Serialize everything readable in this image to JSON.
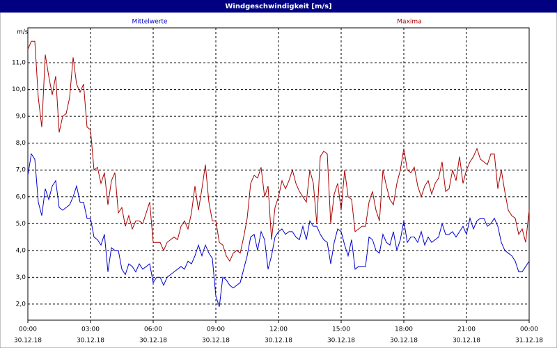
{
  "chart_data": {
    "type": "line",
    "title": "Windgeschwindigkeit [m/s]",
    "y_label": "m/s",
    "x": [
      0,
      10,
      20,
      30,
      40,
      50,
      60,
      70,
      80,
      90,
      100,
      110,
      120,
      130,
      140,
      150,
      160,
      170,
      180,
      190,
      200,
      210,
      220,
      230,
      240,
      250,
      260,
      270,
      280,
      290,
      300,
      310,
      320,
      330,
      340,
      350,
      360,
      370,
      380,
      390,
      400,
      410,
      420,
      430,
      440,
      450,
      460,
      470,
      480,
      490,
      500,
      510,
      520,
      530,
      540,
      550,
      560,
      570,
      580,
      590,
      600,
      610,
      620,
      630,
      640,
      650,
      660,
      670,
      680,
      690,
      700,
      710,
      720,
      730,
      740,
      750,
      760,
      770,
      780,
      790,
      800,
      810,
      820,
      830,
      840,
      850,
      860,
      870,
      880,
      890,
      900,
      910,
      920,
      930,
      940,
      950,
      960,
      970,
      980,
      990,
      1000,
      1010,
      1020,
      1030,
      1040,
      1050,
      1060,
      1070,
      1080,
      1090,
      1100,
      1110,
      1120,
      1130,
      1140,
      1150,
      1160,
      1170,
      1180,
      1190,
      1200,
      1210,
      1220,
      1230,
      1240,
      1250,
      1260,
      1270,
      1280,
      1290,
      1300,
      1310,
      1320,
      1330,
      1340,
      1350,
      1360,
      1370,
      1380,
      1390,
      1400,
      1410,
      1420,
      1430,
      1440
    ],
    "series": [
      {
        "name": "Mittelwerte",
        "color": "#0000cc",
        "values": [
          6.8,
          7.6,
          7.4,
          5.8,
          5.3,
          6.3,
          5.9,
          6.4,
          6.6,
          5.6,
          5.5,
          5.6,
          5.7,
          6.0,
          6.4,
          5.8,
          5.8,
          5.2,
          5.2,
          4.5,
          4.4,
          4.2,
          4.6,
          3.2,
          4.1,
          4.0,
          4.0,
          3.3,
          3.1,
          3.5,
          3.4,
          3.2,
          3.5,
          3.3,
          3.4,
          3.5,
          2.8,
          3.0,
          3.0,
          2.7,
          3.0,
          3.1,
          3.2,
          3.3,
          3.4,
          3.3,
          3.6,
          3.5,
          3.8,
          4.2,
          3.8,
          4.2,
          3.9,
          3.7,
          2.3,
          1.9,
          3.0,
          2.9,
          2.7,
          2.6,
          2.7,
          2.8,
          3.3,
          3.8,
          4.5,
          4.6,
          4.0,
          4.7,
          4.4,
          3.3,
          3.8,
          4.5,
          4.7,
          4.8,
          4.6,
          4.7,
          4.7,
          4.5,
          4.4,
          4.9,
          4.4,
          5.1,
          4.9,
          4.9,
          4.6,
          4.4,
          4.3,
          3.5,
          4.3,
          4.8,
          4.7,
          4.2,
          3.8,
          4.4,
          3.3,
          3.4,
          3.4,
          3.4,
          4.5,
          4.4,
          4.0,
          3.9,
          4.6,
          4.3,
          4.2,
          4.7,
          4.0,
          4.4,
          5.1,
          4.3,
          4.5,
          4.5,
          4.3,
          4.7,
          4.2,
          4.5,
          4.3,
          4.4,
          4.5,
          5.0,
          4.6,
          4.6,
          4.7,
          4.5,
          4.7,
          4.9,
          4.6,
          5.2,
          4.8,
          5.1,
          5.2,
          5.2,
          4.9,
          5.0,
          5.2,
          4.9,
          4.3,
          4.0,
          3.9,
          3.8,
          3.6,
          3.2,
          3.2,
          3.4,
          3.6
        ]
      },
      {
        "name": "Maxima",
        "color": "#aa0000",
        "values": [
          11.5,
          11.8,
          11.8,
          9.7,
          8.6,
          11.3,
          10.5,
          9.8,
          10.5,
          8.4,
          9.0,
          9.1,
          9.7,
          11.2,
          10.2,
          9.9,
          10.2,
          8.6,
          8.5,
          7.0,
          7.1,
          6.5,
          6.9,
          5.7,
          6.6,
          6.9,
          5.4,
          5.6,
          4.9,
          5.3,
          4.8,
          5.1,
          5.1,
          5.0,
          5.4,
          5.8,
          4.3,
          4.3,
          4.3,
          4.0,
          4.3,
          4.4,
          4.5,
          4.4,
          4.9,
          5.1,
          4.8,
          5.4,
          6.4,
          5.5,
          6.3,
          7.2,
          5.8,
          5.1,
          5.1,
          4.3,
          4.2,
          3.8,
          3.6,
          3.9,
          4.0,
          3.9,
          4.5,
          5.2,
          6.5,
          6.8,
          6.7,
          7.1,
          6.0,
          6.4,
          4.4,
          5.6,
          6.0,
          6.6,
          6.3,
          6.6,
          7.0,
          6.5,
          6.2,
          6.0,
          5.8,
          7.0,
          6.5,
          5.0,
          7.5,
          7.7,
          7.6,
          5.0,
          6.1,
          6.5,
          5.5,
          7.0,
          6.0,
          5.9,
          4.7,
          4.8,
          4.9,
          4.9,
          5.8,
          6.2,
          5.5,
          5.1,
          7.0,
          6.4,
          5.9,
          5.7,
          6.5,
          7.0,
          7.8,
          7.0,
          6.9,
          7.1,
          6.4,
          6.0,
          6.4,
          6.6,
          6.1,
          6.5,
          6.7,
          7.3,
          6.2,
          6.3,
          7.0,
          6.6,
          7.5,
          6.5,
          7.0,
          7.3,
          7.5,
          7.8,
          7.4,
          7.3,
          7.2,
          7.6,
          7.6,
          6.3,
          7.0,
          6.2,
          5.5,
          5.3,
          5.2,
          4.6,
          4.8,
          4.3,
          5.5
        ]
      }
    ],
    "xlim": [
      0,
      1440
    ],
    "xticks": [
      {
        "value": 0,
        "label": "00:00"
      },
      {
        "value": 180,
        "label": "03:00"
      },
      {
        "value": 360,
        "label": "06:00"
      },
      {
        "value": 540,
        "label": "09:00"
      },
      {
        "value": 720,
        "label": "12:00"
      },
      {
        "value": 900,
        "label": "15:00"
      },
      {
        "value": 1080,
        "label": "18:00"
      },
      {
        "value": 1260,
        "label": "21:00"
      },
      {
        "value": 1440,
        "label": "00:00"
      }
    ],
    "xtick_dates": [
      "30.12.18",
      "30.12.18",
      "30.12.18",
      "30.12.18",
      "30.12.18",
      "30.12.18",
      "30.12.18",
      "30.12.18",
      "31.12.18"
    ],
    "ylim": [
      1.4,
      12.3
    ],
    "yticks": [
      {
        "value": 2,
        "label": "2,0"
      },
      {
        "value": 3,
        "label": "3,0"
      },
      {
        "value": 4,
        "label": "4,0"
      },
      {
        "value": 5,
        "label": "5,0"
      },
      {
        "value": 6,
        "label": "6,0"
      },
      {
        "value": 7,
        "label": "7,0"
      },
      {
        "value": 8,
        "label": "8,0"
      },
      {
        "value": 9,
        "label": "9,0"
      },
      {
        "value": 10,
        "label": "10,0"
      },
      {
        "value": 11,
        "label": "11,0"
      }
    ],
    "grid": true
  }
}
